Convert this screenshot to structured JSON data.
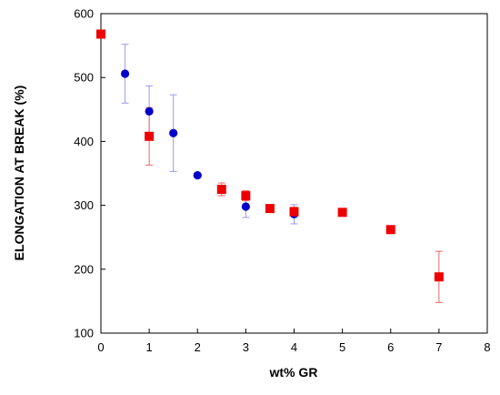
{
  "chart_data": {
    "type": "scatter",
    "title": "",
    "xlabel": "wt% GR",
    "ylabel": "ELONGATION AT BREAK (%)",
    "xlim": [
      0,
      8
    ],
    "ylim": [
      100,
      600
    ],
    "xticks": [
      0,
      1,
      2,
      3,
      4,
      5,
      6,
      7,
      8
    ],
    "yticks": [
      100,
      200,
      300,
      400,
      500,
      600
    ],
    "grid": false,
    "legend": "none",
    "series": [
      {
        "marker": "circle",
        "color": "#0000cc",
        "error_color": "#9999ee",
        "points": [
          {
            "x": 0.5,
            "y": 506,
            "err": 46
          },
          {
            "x": 1.0,
            "y": 447,
            "err": 40
          },
          {
            "x": 1.5,
            "y": 413,
            "err": 60
          },
          {
            "x": 2.0,
            "y": 347,
            "err": 0
          },
          {
            "x": 3.0,
            "y": 298,
            "err": 17
          },
          {
            "x": 4.0,
            "y": 286,
            "err": 15
          }
        ]
      },
      {
        "marker": "square",
        "color": "#ee0000",
        "error_color": "#ee6666",
        "points": [
          {
            "x": 0.0,
            "y": 568,
            "err": 0
          },
          {
            "x": 1.0,
            "y": 408,
            "err": 45
          },
          {
            "x": 2.5,
            "y": 325,
            "err": 10
          },
          {
            "x": 3.0,
            "y": 315,
            "err": 8
          },
          {
            "x": 3.5,
            "y": 295,
            "err": 0
          },
          {
            "x": 4.0,
            "y": 290,
            "err": 7
          },
          {
            "x": 5.0,
            "y": 289,
            "err": 0
          },
          {
            "x": 6.0,
            "y": 262,
            "err": 0
          },
          {
            "x": 7.0,
            "y": 188,
            "err": 40
          }
        ]
      }
    ]
  }
}
